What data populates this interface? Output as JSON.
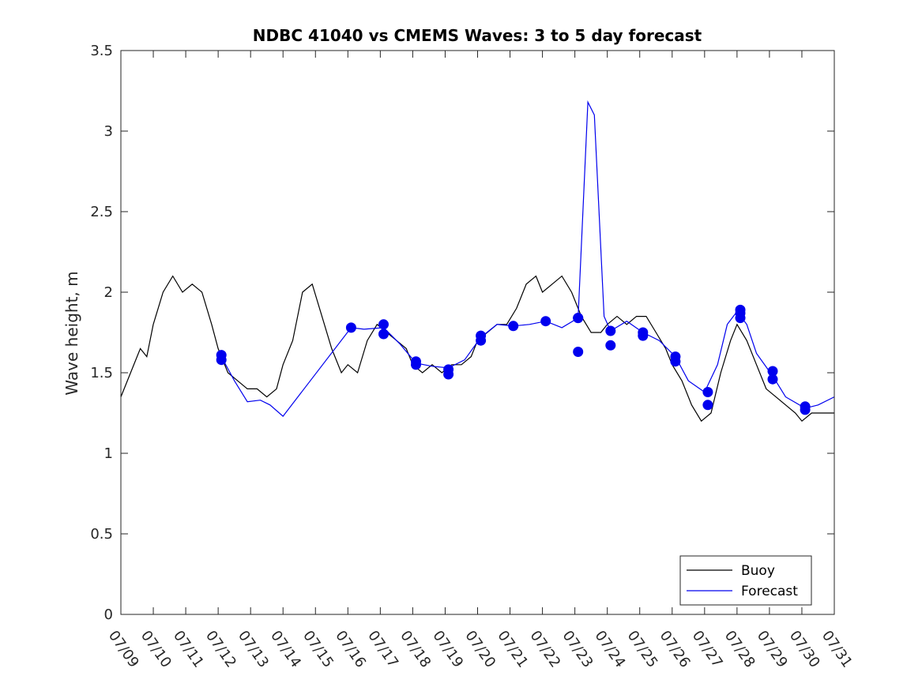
{
  "chart_data": {
    "type": "line",
    "title": "NDBC 41040 vs CMEMS Waves: 3 to 5 day forecast",
    "xlabel": "",
    "ylabel": "Wave height, m",
    "xlim": [
      "07/09",
      "07/31"
    ],
    "ylim": [
      0,
      3.5
    ],
    "grid": false,
    "legend_position": "bottom-right",
    "x_tick_labels": [
      "07/09",
      "07/10",
      "07/11",
      "07/12",
      "07/13",
      "07/14",
      "07/15",
      "07/16",
      "07/17",
      "07/18",
      "07/19",
      "07/20",
      "07/21",
      "07/22",
      "07/23",
      "07/24",
      "07/25",
      "07/26",
      "07/27",
      "07/28",
      "07/29",
      "07/30",
      "07/31"
    ],
    "y_ticks": [
      0,
      0.5,
      1,
      1.5,
      2,
      2.5,
      3,
      3.5
    ],
    "colors": {
      "buoy": "#000000",
      "forecast": "#0000ee"
    },
    "series": [
      {
        "name": "Buoy",
        "color": "#000000",
        "x_day": [
          9.0,
          9.3,
          9.6,
          9.8,
          10.0,
          10.3,
          10.6,
          10.9,
          11.2,
          11.5,
          11.8,
          12.0,
          12.3,
          12.6,
          12.9,
          13.2,
          13.5,
          13.8,
          14.0,
          14.3,
          14.6,
          14.9,
          15.2,
          15.5,
          15.8,
          16.0,
          16.3,
          16.6,
          16.9,
          17.2,
          17.5,
          17.8,
          18.0,
          18.3,
          18.6,
          18.9,
          19.2,
          19.5,
          19.8,
          20.0,
          20.3,
          20.6,
          20.9,
          21.2,
          21.5,
          21.8,
          22.0,
          22.3,
          22.6,
          22.9,
          23.2,
          23.5,
          23.8,
          24.0,
          24.3,
          24.6,
          24.9,
          25.2,
          25.5,
          25.8,
          26.0,
          26.3,
          26.6,
          26.9,
          27.2,
          27.5,
          27.8,
          28.0,
          28.3,
          28.6,
          28.9,
          29.2,
          29.5,
          29.8,
          30.0,
          30.3,
          30.6,
          31.0
        ],
        "y": [
          1.35,
          1.5,
          1.65,
          1.6,
          1.8,
          2.0,
          2.1,
          2.0,
          2.05,
          2.0,
          1.8,
          1.65,
          1.5,
          1.45,
          1.4,
          1.4,
          1.35,
          1.4,
          1.55,
          1.7,
          2.0,
          2.05,
          1.85,
          1.65,
          1.5,
          1.55,
          1.5,
          1.7,
          1.8,
          1.75,
          1.7,
          1.65,
          1.55,
          1.5,
          1.55,
          1.5,
          1.55,
          1.55,
          1.6,
          1.7,
          1.75,
          1.8,
          1.8,
          1.9,
          2.05,
          2.1,
          2.0,
          2.05,
          2.1,
          2.0,
          1.85,
          1.75,
          1.75,
          1.8,
          1.85,
          1.8,
          1.85,
          1.85,
          1.75,
          1.65,
          1.55,
          1.45,
          1.3,
          1.2,
          1.25,
          1.5,
          1.7,
          1.8,
          1.7,
          1.55,
          1.4,
          1.35,
          1.3,
          1.25,
          1.2,
          1.25,
          1.25,
          1.25
        ]
      },
      {
        "name": "Forecast",
        "color": "#0000ee",
        "x_day": [
          12.1,
          12.5,
          12.9,
          13.3,
          13.6,
          14.0,
          16.1,
          16.5,
          17.1,
          17.6,
          18.1,
          18.6,
          19.1,
          19.6,
          20.1,
          20.6,
          21.1,
          21.6,
          22.1,
          22.6,
          23.1,
          23.4,
          23.6,
          23.9,
          24.1,
          24.6,
          25.1,
          25.6,
          26.1,
          26.5,
          27.0,
          27.4,
          27.7,
          28.0,
          28.3,
          28.6,
          29.1,
          29.5,
          30.1,
          30.5,
          31.0
        ],
        "y": [
          1.6,
          1.45,
          1.32,
          1.33,
          1.3,
          1.23,
          1.78,
          1.77,
          1.78,
          1.68,
          1.56,
          1.54,
          1.53,
          1.58,
          1.72,
          1.8,
          1.79,
          1.8,
          1.82,
          1.78,
          1.84,
          3.18,
          3.1,
          1.85,
          1.76,
          1.82,
          1.75,
          1.7,
          1.6,
          1.45,
          1.38,
          1.55,
          1.8,
          1.88,
          1.8,
          1.62,
          1.48,
          1.35,
          1.28,
          1.3,
          1.35
        ]
      }
    ],
    "markers": {
      "series": "Forecast",
      "x_day": [
        12.1,
        12.1,
        16.1,
        17.1,
        17.1,
        18.1,
        18.1,
        19.1,
        19.1,
        20.1,
        20.1,
        21.1,
        22.1,
        23.1,
        23.1,
        23.1,
        24.1,
        24.1,
        25.1,
        25.1,
        26.1,
        26.1,
        27.1,
        27.1,
        28.1,
        28.1,
        28.1,
        29.1,
        29.1,
        30.1,
        30.1
      ],
      "y": [
        1.61,
        1.58,
        1.78,
        1.8,
        1.74,
        1.57,
        1.55,
        1.52,
        1.49,
        1.73,
        1.7,
        1.79,
        1.82,
        1.84,
        1.84,
        1.63,
        1.76,
        1.67,
        1.75,
        1.73,
        1.6,
        1.57,
        1.38,
        1.3,
        1.89,
        1.87,
        1.84,
        1.51,
        1.46,
        1.29,
        1.27
      ]
    },
    "legend": [
      {
        "label": "Buoy",
        "color": "#000000"
      },
      {
        "label": "Forecast",
        "color": "#0000ee"
      }
    ]
  }
}
